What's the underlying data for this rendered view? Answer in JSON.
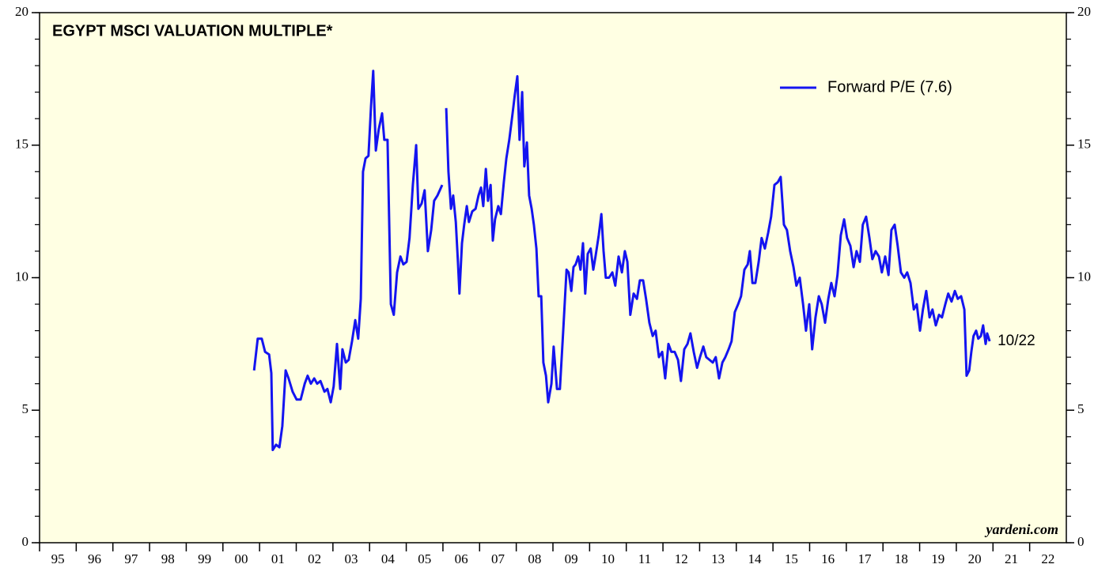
{
  "chart_data": {
    "type": "line",
    "title": "EGYPT MSCI VALUATION MULTIPLE*",
    "annotation": "10/22",
    "source": "yardeni.com",
    "legend_position": "upper right",
    "xlim": [
      1995,
      2023
    ],
    "xticks": [
      {
        "value": 1995,
        "label": "95"
      },
      {
        "value": 1996,
        "label": "96"
      },
      {
        "value": 1997,
        "label": "97"
      },
      {
        "value": 1998,
        "label": "98"
      },
      {
        "value": 1999,
        "label": "99"
      },
      {
        "value": 2000,
        "label": "00"
      },
      {
        "value": 2001,
        "label": "01"
      },
      {
        "value": 2002,
        "label": "02"
      },
      {
        "value": 2003,
        "label": "03"
      },
      {
        "value": 2004,
        "label": "04"
      },
      {
        "value": 2005,
        "label": "05"
      },
      {
        "value": 2006,
        "label": "06"
      },
      {
        "value": 2007,
        "label": "07"
      },
      {
        "value": 2008,
        "label": "08"
      },
      {
        "value": 2009,
        "label": "09"
      },
      {
        "value": 2010,
        "label": "10"
      },
      {
        "value": 2011,
        "label": "11"
      },
      {
        "value": 2012,
        "label": "12"
      },
      {
        "value": 2013,
        "label": "13"
      },
      {
        "value": 2014,
        "label": "14"
      },
      {
        "value": 2015,
        "label": "15"
      },
      {
        "value": 2016,
        "label": "16"
      },
      {
        "value": 2017,
        "label": "17"
      },
      {
        "value": 2018,
        "label": "18"
      },
      {
        "value": 2019,
        "label": "19"
      },
      {
        "value": 2020,
        "label": "20"
      },
      {
        "value": 2021,
        "label": "21"
      },
      {
        "value": 2022,
        "label": "22"
      }
    ],
    "ylim": [
      0,
      20
    ],
    "yticks": [
      0,
      5,
      10,
      15,
      20
    ],
    "x": [
      2000.85,
      2000.95,
      2001.06,
      2001.15,
      2001.26,
      2001.32,
      2001.36,
      2001.45,
      2001.54,
      2001.62,
      2001.71,
      2001.79,
      2001.9,
      2002.01,
      2002.12,
      2002.23,
      2002.31,
      2002.4,
      2002.49,
      2002.57,
      2002.66,
      2002.77,
      2002.85,
      2002.94,
      2003.02,
      2003.11,
      2003.2,
      2003.26,
      2003.35,
      2003.43,
      2003.52,
      2003.61,
      2003.69,
      2003.76,
      2003.82,
      2003.89,
      2003.97,
      2004.04,
      2004.1,
      2004.17,
      2004.25,
      2004.34,
      2004.4,
      2004.49,
      2004.58,
      2004.66,
      2004.75,
      2004.84,
      2004.92,
      2005.01,
      2005.09,
      2005.18,
      2005.27,
      2005.33,
      2005.42,
      2005.5,
      2005.59,
      2005.68,
      2005.76,
      2005.85,
      2005.98,
      2006.02,
      2006.09,
      2006.15,
      2006.22,
      2006.28,
      2006.35,
      2006.41,
      2006.45,
      2006.52,
      2006.58,
      2006.65,
      2006.71,
      2006.8,
      2006.89,
      2006.97,
      2007.04,
      2007.1,
      2007.17,
      2007.23,
      2007.3,
      2007.36,
      2007.42,
      2007.51,
      2007.58,
      2007.66,
      2007.73,
      2007.81,
      2007.9,
      2007.96,
      2008.03,
      2008.09,
      2008.16,
      2008.22,
      2008.29,
      2008.35,
      2008.42,
      2008.48,
      2008.55,
      2008.61,
      2008.68,
      2008.74,
      2008.81,
      2008.87,
      2008.96,
      2009.02,
      2009.11,
      2009.19,
      2009.28,
      2009.37,
      2009.43,
      2009.5,
      2009.56,
      2009.62,
      2009.69,
      2009.75,
      2009.82,
      2009.88,
      2009.95,
      2010.03,
      2010.1,
      2010.16,
      2010.25,
      2010.32,
      2010.38,
      2010.44,
      2010.53,
      2010.62,
      2010.7,
      2010.79,
      2010.88,
      2010.96,
      2011.03,
      2011.11,
      2011.2,
      2011.29,
      2011.37,
      2011.46,
      2011.54,
      2011.63,
      2011.72,
      2011.8,
      2011.89,
      2011.98,
      2012.06,
      2012.15,
      2012.23,
      2012.32,
      2012.41,
      2012.49,
      2012.58,
      2012.67,
      2012.75,
      2012.84,
      2012.93,
      2013.01,
      2013.1,
      2013.18,
      2013.27,
      2013.36,
      2013.44,
      2013.53,
      2013.62,
      2013.7,
      2013.79,
      2013.87,
      2013.96,
      2014.05,
      2014.13,
      2014.22,
      2014.31,
      2014.37,
      2014.44,
      2014.52,
      2014.61,
      2014.69,
      2014.78,
      2014.87,
      2014.95,
      2015.04,
      2015.13,
      2015.21,
      2015.3,
      2015.38,
      2015.47,
      2015.56,
      2015.64,
      2015.73,
      2015.82,
      2015.9,
      2015.99,
      2016.07,
      2016.16,
      2016.25,
      2016.33,
      2016.42,
      2016.51,
      2016.59,
      2016.68,
      2016.76,
      2016.85,
      2016.94,
      2017.02,
      2017.11,
      2017.2,
      2017.28,
      2017.37,
      2017.45,
      2017.54,
      2017.63,
      2017.71,
      2017.8,
      2017.89,
      2017.97,
      2018.06,
      2018.15,
      2018.23,
      2018.32,
      2018.4,
      2018.49,
      2018.58,
      2018.66,
      2018.75,
      2018.84,
      2018.92,
      2019.01,
      2019.09,
      2019.18,
      2019.27,
      2019.35,
      2019.44,
      2019.53,
      2019.61,
      2019.7,
      2019.78,
      2019.87,
      2019.96,
      2020.04,
      2020.13,
      2020.22,
      2020.28,
      2020.35,
      2020.41,
      2020.47,
      2020.54,
      2020.6,
      2020.67,
      2020.73,
      2020.8,
      2020.84,
      2020.91
    ],
    "series": [
      {
        "name": "Forward P/E (7.6)",
        "color": "#1414f0",
        "values": [
          6.5,
          7.7,
          7.7,
          7.2,
          7.1,
          6.4,
          3.5,
          3.7,
          3.6,
          4.4,
          6.5,
          6.2,
          5.7,
          5.4,
          5.4,
          6.0,
          6.3,
          6.0,
          6.2,
          6.0,
          6.1,
          5.7,
          5.8,
          5.3,
          5.9,
          7.5,
          5.8,
          7.3,
          6.8,
          6.9,
          7.6,
          8.4,
          7.7,
          9.2,
          14.0,
          14.5,
          14.6,
          16.5,
          17.8,
          14.8,
          15.6,
          16.2,
          15.2,
          15.2,
          9.0,
          8.6,
          10.2,
          10.8,
          10.5,
          10.6,
          11.5,
          13.5,
          15.0,
          12.6,
          12.8,
          13.3,
          11.0,
          11.8,
          12.9,
          13.1,
          13.5,
          null,
          16.4,
          14.0,
          12.6,
          13.1,
          12.1,
          10.6,
          9.4,
          11.3,
          12.0,
          12.7,
          12.1,
          12.5,
          12.6,
          13.1,
          13.4,
          12.7,
          14.1,
          12.9,
          13.5,
          11.4,
          12.2,
          12.7,
          12.4,
          13.6,
          14.5,
          15.2,
          16.2,
          16.9,
          17.6,
          15.2,
          17.0,
          14.2,
          15.1,
          13.1,
          12.6,
          12.0,
          11.1,
          9.3,
          9.3,
          6.8,
          6.3,
          5.3,
          6.0,
          7.4,
          5.8,
          5.8,
          8.0,
          10.3,
          10.2,
          9.5,
          10.4,
          10.5,
          10.8,
          10.3,
          11.3,
          9.4,
          10.9,
          11.1,
          10.3,
          10.8,
          11.6,
          12.4,
          11.0,
          10.0,
          10.0,
          10.2,
          9.7,
          10.8,
          10.2,
          11.0,
          10.6,
          8.6,
          9.4,
          9.2,
          9.9,
          9.9,
          9.2,
          8.3,
          7.8,
          8.0,
          7.0,
          7.2,
          6.2,
          7.5,
          7.2,
          7.2,
          6.9,
          6.1,
          7.3,
          7.5,
          7.9,
          7.2,
          6.6,
          7.0,
          7.4,
          7.0,
          6.9,
          6.8,
          7.0,
          6.2,
          6.8,
          7.0,
          7.3,
          7.6,
          8.7,
          9.0,
          9.3,
          10.3,
          10.5,
          11.0,
          9.8,
          9.8,
          10.6,
          11.5,
          11.1,
          11.7,
          12.3,
          13.5,
          13.6,
          13.8,
          12.0,
          11.8,
          11.0,
          10.4,
          9.7,
          10.0,
          9.0,
          8.0,
          9.0,
          7.3,
          8.5,
          9.3,
          9.0,
          8.3,
          9.2,
          9.8,
          9.3,
          10.1,
          11.6,
          12.2,
          11.5,
          11.2,
          10.4,
          11.0,
          10.6,
          12.0,
          12.3,
          11.5,
          10.7,
          11.0,
          10.8,
          10.2,
          10.8,
          10.1,
          11.8,
          12.0,
          11.2,
          10.2,
          10.0,
          10.2,
          9.8,
          8.8,
          9.0,
          8.0,
          8.8,
          9.5,
          8.5,
          8.8,
          8.2,
          8.6,
          8.5,
          9.0,
          9.4,
          9.1,
          9.5,
          9.2,
          9.3,
          8.8,
          6.3,
          6.5,
          7.2,
          7.8,
          8.0,
          7.7,
          7.8,
          8.2,
          7.5,
          7.9,
          7.6
        ]
      }
    ]
  }
}
